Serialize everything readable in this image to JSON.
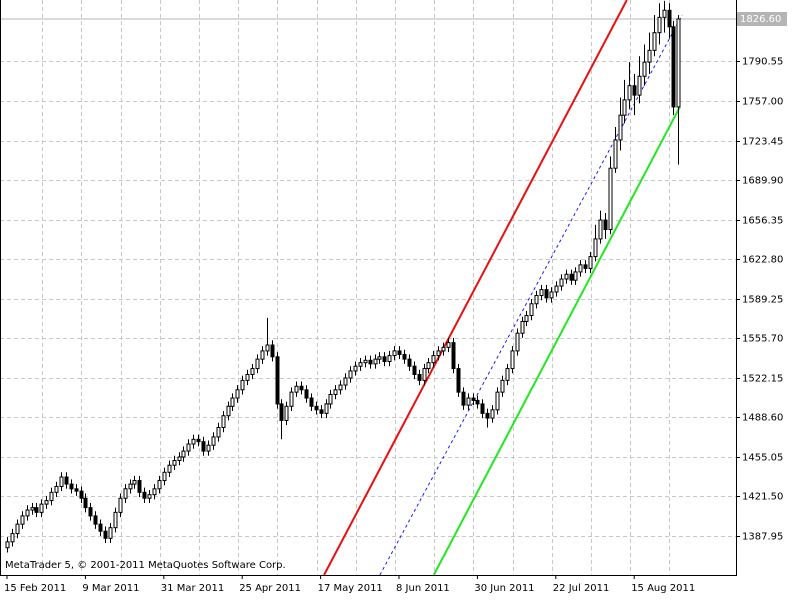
{
  "chart_data": {
    "type": "candlestick",
    "watermark": "MetaTrader 5, © 2001-2011 MetaQuotes Software Corp.",
    "grid": true,
    "bull_color": "#ffffff",
    "bear_color": "#000000",
    "outline_color": "#000000",
    "ylim": [
      1354.86,
      1842.72
    ],
    "yticks": [
      1387.95,
      {
        "value": 1421.5,
        "label": "1421.50"
      },
      1455.05,
      {
        "value": 1488.6,
        "label": "1488.60"
      },
      1522.15,
      {
        "value": 1555.7,
        "label": "1555.70"
      },
      1589.25,
      {
        "value": 1622.8,
        "label": "1622.80"
      },
      1656.35,
      {
        "value": 1689.9,
        "label": "1689.90"
      },
      1723.45,
      {
        "value": 1757,
        "label": "1757.00"
      },
      1790.55
    ],
    "last_price": {
      "value": 1826.6,
      "label": "1826.60"
    },
    "categories": [
      "15 Feb 2011",
      null,
      null,
      null,
      null,
      null,
      null,
      null,
      null,
      null,
      null,
      null,
      null,
      null,
      null,
      null,
      "9 Mar 2011",
      null,
      null,
      null,
      null,
      null,
      null,
      null,
      null,
      null,
      null,
      null,
      null,
      null,
      null,
      null,
      "31 Mar 2011",
      null,
      null,
      null,
      null,
      null,
      null,
      null,
      null,
      null,
      null,
      null,
      null,
      null,
      null,
      null,
      "25 Apr 2011",
      null,
      null,
      null,
      null,
      null,
      null,
      null,
      null,
      null,
      null,
      null,
      null,
      null,
      null,
      null,
      "17 May 2011",
      null,
      null,
      null,
      null,
      null,
      null,
      null,
      null,
      null,
      null,
      null,
      null,
      null,
      null,
      null,
      "8 Jun 2011",
      null,
      null,
      null,
      null,
      null,
      null,
      null,
      null,
      null,
      null,
      null,
      null,
      null,
      null,
      null,
      "30 Jun 2011",
      null,
      null,
      null,
      null,
      null,
      null,
      null,
      null,
      null,
      null,
      null,
      null,
      null,
      null,
      null,
      "22 Jul 2011",
      null,
      null,
      null,
      null,
      null,
      null,
      null,
      null,
      null,
      null,
      null,
      null,
      null,
      null,
      null,
      "15 Aug 2011",
      null,
      null,
      null,
      null,
      null,
      null,
      null,
      null,
      null
    ],
    "open": [
      1378,
      1383,
      1390,
      1398,
      1405,
      1410,
      1412,
      1408,
      1415,
      1418,
      1425,
      1430,
      1438,
      1432,
      1428,
      1426,
      1420,
      1412,
      1405,
      1398,
      1392,
      1386,
      1395,
      1408,
      1420,
      1428,
      1432,
      1435,
      1425,
      1420,
      1423,
      1428,
      1435,
      1442,
      1448,
      1452,
      1455,
      1460,
      1466,
      1470,
      1468,
      1460,
      1465,
      1472,
      1480,
      1490,
      1498,
      1505,
      1512,
      1520,
      1525,
      1530,
      1538,
      1545,
      1550,
      1540,
      1500,
      1486,
      1498,
      1510,
      1515,
      1512,
      1505,
      1498,
      1495,
      1492,
      1500,
      1508,
      1512,
      1516,
      1522,
      1528,
      1532,
      1535,
      1537,
      1534,
      1538,
      1540,
      1536,
      1541,
      1545,
      1542,
      1538,
      1532,
      1525,
      1520,
      1530,
      1535,
      1541,
      1545,
      1548,
      1552,
      1530,
      1510,
      1499,
      1505,
      1503,
      1500,
      1492,
      1488,
      1495,
      1510,
      1520,
      1530,
      1545,
      1560,
      1570,
      1575,
      1585,
      1592,
      1597,
      1590,
      1595,
      1600,
      1606,
      1610,
      1605,
      1612,
      1618,
      1615,
      1625,
      1640,
      1656,
      1648,
      1700,
      1724,
      1745,
      1758,
      1770,
      1762,
      1778,
      1790,
      1800,
      1815,
      1828,
      1834,
      1820,
      1752
    ],
    "high": [
      1387,
      1394,
      1402,
      1409,
      1414,
      1416,
      1416,
      1419,
      1422,
      1429,
      1434,
      1442,
      1442,
      1436,
      1432,
      1430,
      1424,
      1416,
      1409,
      1402,
      1396,
      1399,
      1412,
      1424,
      1432,
      1436,
      1439,
      1439,
      1429,
      1427,
      1432,
      1439,
      1446,
      1452,
      1456,
      1459,
      1464,
      1470,
      1474,
      1474,
      1472,
      1469,
      1476,
      1484,
      1494,
      1502,
      1509,
      1516,
      1524,
      1529,
      1534,
      1542,
      1549,
      1573,
      1554,
      1544,
      1504,
      1502,
      1514,
      1519,
      1519,
      1516,
      1509,
      1502,
      1499,
      1504,
      1512,
      1516,
      1520,
      1526,
      1532,
      1536,
      1539,
      1541,
      1541,
      1542,
      1544,
      1544,
      1545,
      1549,
      1549,
      1546,
      1542,
      1536,
      1529,
      1534,
      1539,
      1545,
      1549,
      1552,
      1556,
      1556,
      1534,
      1514,
      1509,
      1509,
      1507,
      1504,
      1496,
      1499,
      1514,
      1524,
      1534,
      1549,
      1564,
      1574,
      1579,
      1589,
      1596,
      1601,
      1601,
      1599,
      1604,
      1610,
      1614,
      1614,
      1616,
      1622,
      1622,
      1629,
      1652,
      1664,
      1662,
      1710,
      1735,
      1760,
      1775,
      1790,
      1780,
      1795,
      1805,
      1815,
      1830,
      1840,
      1842,
      1840,
      1825,
      1830
    ],
    "low": [
      1374,
      1379,
      1386,
      1394,
      1401,
      1406,
      1404,
      1404,
      1411,
      1414,
      1421,
      1426,
      1428,
      1424,
      1422,
      1416,
      1408,
      1401,
      1394,
      1388,
      1382,
      1382,
      1391,
      1404,
      1416,
      1424,
      1428,
      1421,
      1416,
      1416,
      1419,
      1424,
      1431,
      1438,
      1444,
      1448,
      1451,
      1456,
      1462,
      1464,
      1456,
      1456,
      1461,
      1468,
      1476,
      1486,
      1494,
      1501,
      1508,
      1516,
      1521,
      1526,
      1534,
      1541,
      1536,
      1496,
      1470,
      1482,
      1494,
      1506,
      1508,
      1501,
      1494,
      1491,
      1488,
      1488,
      1496,
      1504,
      1508,
      1512,
      1518,
      1524,
      1528,
      1531,
      1530,
      1530,
      1534,
      1532,
      1532,
      1537,
      1538,
      1534,
      1528,
      1521,
      1516,
      1516,
      1526,
      1531,
      1537,
      1541,
      1544,
      1526,
      1506,
      1495,
      1495,
      1499,
      1496,
      1488,
      1480,
      1484,
      1491,
      1506,
      1516,
      1526,
      1541,
      1556,
      1566,
      1571,
      1581,
      1588,
      1586,
      1586,
      1591,
      1596,
      1602,
      1601,
      1601,
      1608,
      1611,
      1611,
      1621,
      1636,
      1640,
      1644,
      1696,
      1715,
      1738,
      1750,
      1745,
      1755,
      1770,
      1780,
      1795,
      1805,
      1815,
      1810,
      1745,
      1703
    ],
    "close": [
      1383,
      1390,
      1398,
      1405,
      1410,
      1412,
      1408,
      1415,
      1418,
      1425,
      1430,
      1438,
      1432,
      1428,
      1426,
      1420,
      1412,
      1405,
      1398,
      1392,
      1386,
      1395,
      1408,
      1420,
      1428,
      1432,
      1435,
      1425,
      1420,
      1423,
      1428,
      1435,
      1442,
      1448,
      1452,
      1455,
      1460,
      1466,
      1470,
      1468,
      1460,
      1465,
      1472,
      1480,
      1490,
      1498,
      1505,
      1512,
      1520,
      1525,
      1530,
      1538,
      1545,
      1550,
      1540,
      1500,
      1486,
      1498,
      1510,
      1515,
      1512,
      1505,
      1498,
      1495,
      1492,
      1500,
      1508,
      1512,
      1516,
      1522,
      1528,
      1532,
      1535,
      1537,
      1534,
      1538,
      1540,
      1536,
      1541,
      1545,
      1542,
      1538,
      1532,
      1525,
      1520,
      1530,
      1535,
      1541,
      1545,
      1548,
      1552,
      1530,
      1510,
      1499,
      1505,
      1503,
      1500,
      1492,
      1488,
      1495,
      1510,
      1520,
      1530,
      1545,
      1560,
      1570,
      1575,
      1585,
      1592,
      1597,
      1590,
      1595,
      1600,
      1606,
      1610,
      1605,
      1612,
      1618,
      1615,
      1625,
      1640,
      1656,
      1648,
      1700,
      1724,
      1745,
      1758,
      1770,
      1762,
      1778,
      1790,
      1800,
      1815,
      1828,
      1834,
      1820,
      1752,
      1826.6
    ],
    "lines": [
      {
        "color": "#e81010",
        "dashed": false,
        "x": [
          64.7,
          126.5
        ],
        "y": [
          1354.86,
          1842.72
        ]
      },
      {
        "color": "#1a1aff",
        "dashed": true,
        "x": [
          76.1,
          137.8
        ],
        "y": [
          1354.86,
          1830
        ]
      },
      {
        "color": "#22e822",
        "dashed": false,
        "x": [
          87.1,
          137.3
        ],
        "y": [
          1354.86,
          1751.9
        ]
      }
    ]
  }
}
